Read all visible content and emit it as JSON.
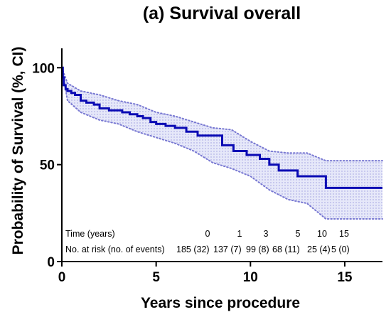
{
  "chart_data": {
    "type": "line",
    "title": "(a) Survival overall",
    "xlabel": "Years since procedure",
    "ylabel": "Probability of Survival (%, CI)",
    "xlim": [
      0,
      17
    ],
    "ylim": [
      0,
      110
    ],
    "x_ticks": [
      0,
      5,
      10,
      15
    ],
    "y_ticks": [
      0,
      50,
      100
    ],
    "grid": false,
    "colors": {
      "estimate": "#0a0ab4",
      "ci_fill": "#c8cdf2",
      "ci_border": "#7878d2"
    },
    "series": [
      {
        "kind": "kaplan-meier-step",
        "x": [
          0,
          0.05,
          0.1,
          0.2,
          0.3,
          0.5,
          0.7,
          1.0,
          1.3,
          1.7,
          2.0,
          2.5,
          3.2,
          3.6,
          4.0,
          4.3,
          4.7,
          5.0,
          5.5,
          6.0,
          6.6,
          7.2,
          8.5,
          9.1,
          9.8,
          10.5,
          11.0,
          11.5,
          12.5,
          14.0,
          17.0
        ],
        "y": [
          100,
          95,
          91,
          89,
          88,
          87,
          86,
          83,
          82,
          81,
          79,
          78,
          77,
          76,
          75,
          74,
          72,
          71,
          70,
          69,
          67,
          65,
          60,
          57,
          55,
          53,
          50,
          47,
          44,
          38,
          38
        ]
      }
    ],
    "ci_upper": {
      "x": [
        0,
        0.3,
        1.0,
        2.0,
        3.0,
        4.0,
        5.0,
        6.0,
        7.0,
        8.0,
        9.0,
        10.0,
        11.0,
        12.0,
        13.0,
        14.0,
        17.0
      ],
      "y": [
        100,
        92,
        88,
        86,
        83,
        81,
        77,
        75,
        72,
        69,
        68,
        62,
        57,
        56,
        56,
        52,
        52
      ]
    },
    "ci_lower": {
      "x": [
        0,
        0.3,
        1.0,
        2.0,
        3.0,
        4.0,
        5.0,
        6.0,
        7.0,
        8.0,
        9.0,
        10.0,
        11.0,
        12.0,
        13.0,
        14.0,
        17.0
      ],
      "y": [
        100,
        83,
        77,
        73,
        71,
        67,
        64,
        61,
        57,
        51,
        48,
        44,
        37,
        32,
        30,
        22,
        22
      ]
    },
    "risk_table": {
      "time_label": "Time (years)",
      "times": [
        "0",
        "1",
        "3",
        "5",
        "10",
        "15"
      ],
      "risk_label": "No. at risk (no. of events)",
      "values": [
        "185 (32)",
        "137 (7)",
        "99 (8)",
        "68 (11)",
        "25 (4)",
        "5 (0)"
      ]
    }
  }
}
